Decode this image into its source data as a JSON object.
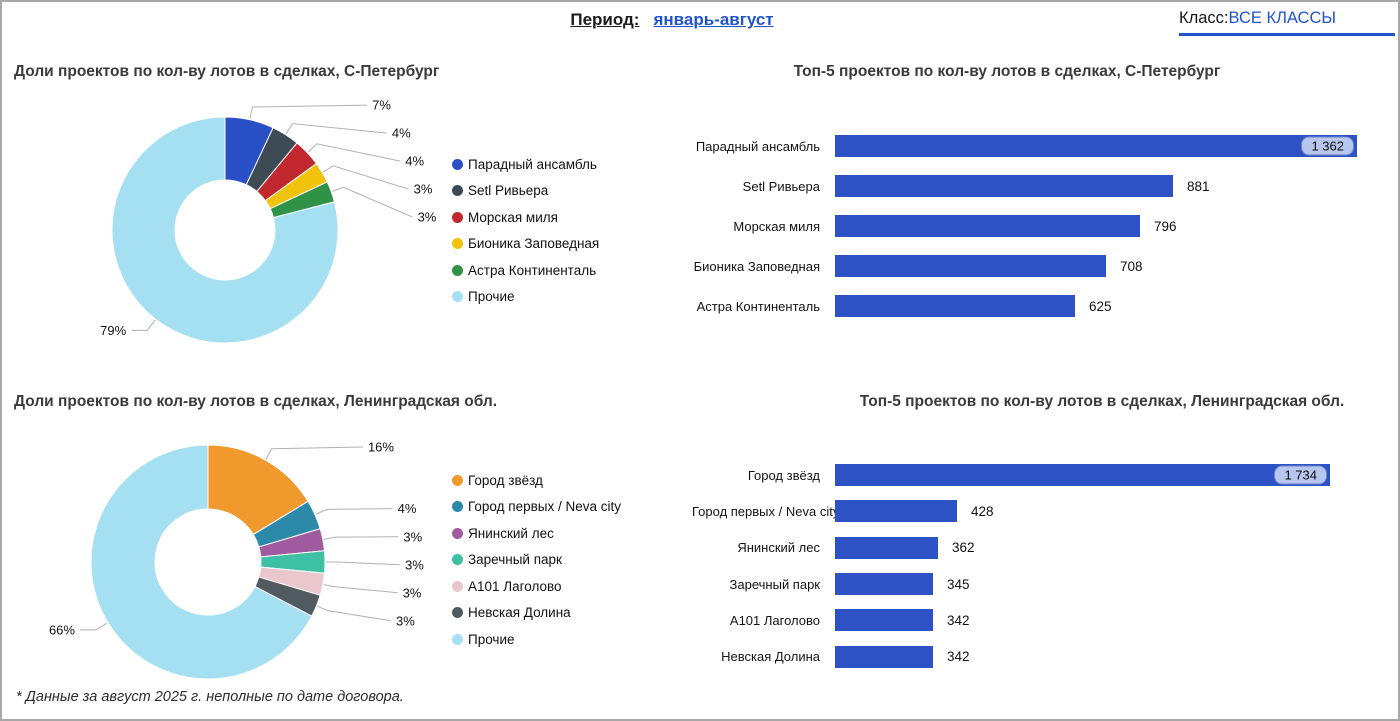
{
  "header": {
    "period_label": "Период:",
    "period_value": "январь-август",
    "class_label": "Класс:",
    "class_value": "ВСЕ КЛАССЫ"
  },
  "footnote": "* Данные за август 2025 г. неполные по дате договора.",
  "colors": {
    "accent_blue": "#2054cd",
    "bar_blue": "#2d52c5",
    "badge_bg": "#b7c6ee",
    "badge_border": "#6d86c9",
    "leader_line": "#b3b0b0",
    "title_gray": "#3a3a3a"
  },
  "chart_data": [
    {
      "id": "donut_spb",
      "type": "pie",
      "donut": true,
      "title": "Доли проектов по кол-ву лотов в сделках, С-Петербург",
      "legend_position": "right",
      "slices": [
        {
          "label": "Парадный ансамбль",
          "pct": 7,
          "pct_label": "7%",
          "color": "#2a50c8"
        },
        {
          "label": "Setl Ривьера",
          "pct": 4,
          "pct_label": "4%",
          "color": "#3e4b54"
        },
        {
          "label": "Морская миля",
          "pct": 4,
          "pct_label": "4%",
          "color": "#c0282e"
        },
        {
          "label": "Бионика Заповедная",
          "pct": 3,
          "pct_label": "3%",
          "color": "#f2c30d"
        },
        {
          "label": "Астра Континенталь",
          "pct": 3,
          "pct_label": "3%",
          "color": "#2f9247"
        },
        {
          "label": "Прочие",
          "pct": 79,
          "pct_label": "79%",
          "color": "#a5e0f2"
        }
      ]
    },
    {
      "id": "bars_spb",
      "type": "bar",
      "orientation": "horizontal",
      "title": "Топ-5 проектов по кол-ву лотов в сделках, С-Петербург",
      "bar_color": "#2d52c5",
      "bars": [
        {
          "name": "Парадный ансамбль",
          "value": 1362,
          "display": "1 362",
          "badge": true
        },
        {
          "name": "Setl Ривьера",
          "value": 881,
          "display": "881",
          "badge": false
        },
        {
          "name": "Морская миля",
          "value": 796,
          "display": "796",
          "badge": false
        },
        {
          "name": "Бионика Заповедная",
          "value": 708,
          "display": "708",
          "badge": false
        },
        {
          "name": "Астра Континенталь",
          "value": 625,
          "display": "625",
          "badge": false
        }
      ]
    },
    {
      "id": "donut_lo",
      "type": "pie",
      "donut": true,
      "title": "Доли проектов по кол-ву лотов в сделках, Ленинградская обл.",
      "legend_position": "right",
      "slices": [
        {
          "label": "Город звёзд",
          "pct": 16,
          "pct_label": "16%",
          "color": "#f0992d"
        },
        {
          "label": "Город первых / Neva city",
          "pct": 4,
          "pct_label": "4%",
          "color": "#2d89a9"
        },
        {
          "label": "Янинский лес",
          "pct": 3,
          "pct_label": "3%",
          "color": "#a05aa0"
        },
        {
          "label": "Заречный парк",
          "pct": 3,
          "pct_label": "3%",
          "color": "#3ec0a5"
        },
        {
          "label": "А101 Лаголово",
          "pct": 3,
          "pct_label": "3%",
          "color": "#eac6cd"
        },
        {
          "label": "Невская Долина",
          "pct": 3,
          "pct_label": "3%",
          "color": "#505a61"
        },
        {
          "label": "Прочие",
          "pct": 66,
          "pct_label": "66%",
          "color": "#a5e0f2"
        }
      ]
    },
    {
      "id": "bars_lo",
      "type": "bar",
      "orientation": "horizontal",
      "title": "Топ-5 проектов по кол-ву лотов в сделках, Ленинградская обл.",
      "bar_color": "#2d52c5",
      "bars": [
        {
          "name": "Город звёзд",
          "value": 1734,
          "display": "1 734",
          "badge": true
        },
        {
          "name": "Город первых / Neva city",
          "value": 428,
          "display": "428",
          "badge": false
        },
        {
          "name": "Янинский лес",
          "value": 362,
          "display": "362",
          "badge": false
        },
        {
          "name": "Заречный парк",
          "value": 345,
          "display": "345",
          "badge": false
        },
        {
          "name": "А101 Лаголово",
          "value": 342,
          "display": "342",
          "badge": false
        },
        {
          "name": "Невская Долина",
          "value": 342,
          "display": "342",
          "badge": false
        }
      ]
    }
  ]
}
